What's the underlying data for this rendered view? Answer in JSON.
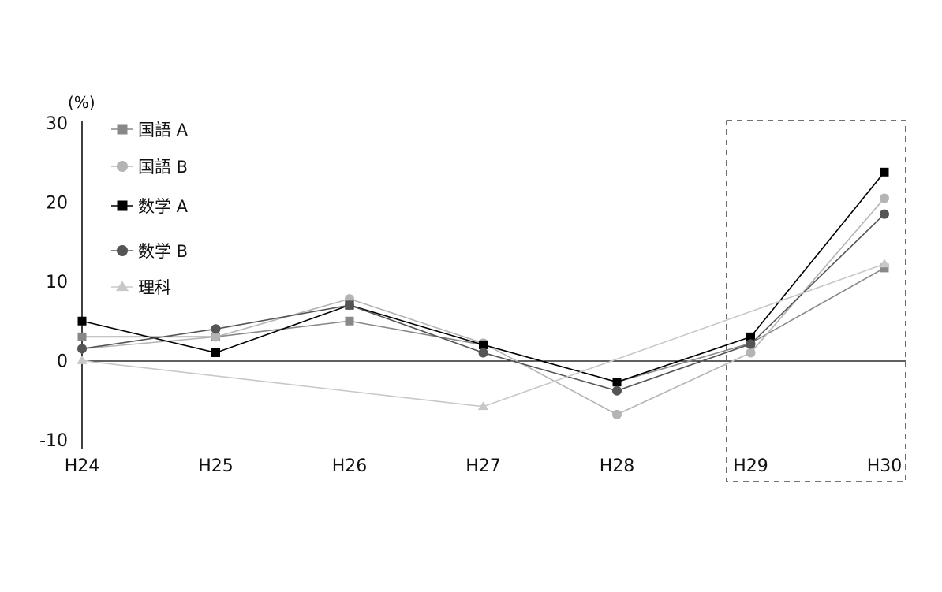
{
  "chart_data": {
    "type": "line",
    "title": "",
    "xlabel": "",
    "ylabel": "",
    "y_unit": "(%)",
    "categories": [
      "H24",
      "H25",
      "H26",
      "H27",
      "H28",
      "H29",
      "H30"
    ],
    "ylim": [
      -10,
      30
    ],
    "yticks": [
      30,
      20,
      10,
      0,
      -10
    ],
    "grid": false,
    "legend_position": "top-left",
    "highlight_range": [
      "H29",
      "H30"
    ],
    "series": [
      {
        "name": "国語 A",
        "marker": "square",
        "color": "#888888",
        "values": [
          3,
          3,
          5,
          2,
          -2.7,
          2.2,
          11.7
        ]
      },
      {
        "name": "国語 B",
        "marker": "circle",
        "color": "#b4b4b4",
        "values": [
          1.5,
          3,
          7.8,
          2.2,
          -6.8,
          1,
          20.5
        ]
      },
      {
        "name": "数学 A",
        "marker": "square",
        "color": "#000000",
        "values": [
          5,
          1,
          7,
          2,
          -2.7,
          3,
          23.8
        ]
      },
      {
        "name": "数学 B",
        "marker": "circle",
        "color": "#555555",
        "values": [
          1.5,
          4,
          7,
          1,
          -3.8,
          2.1,
          18.5
        ]
      },
      {
        "name": "理科",
        "marker": "triangle",
        "color": "#c8c8c8",
        "values": [
          0,
          null,
          null,
          -5.8,
          null,
          null,
          12.2
        ]
      }
    ]
  }
}
